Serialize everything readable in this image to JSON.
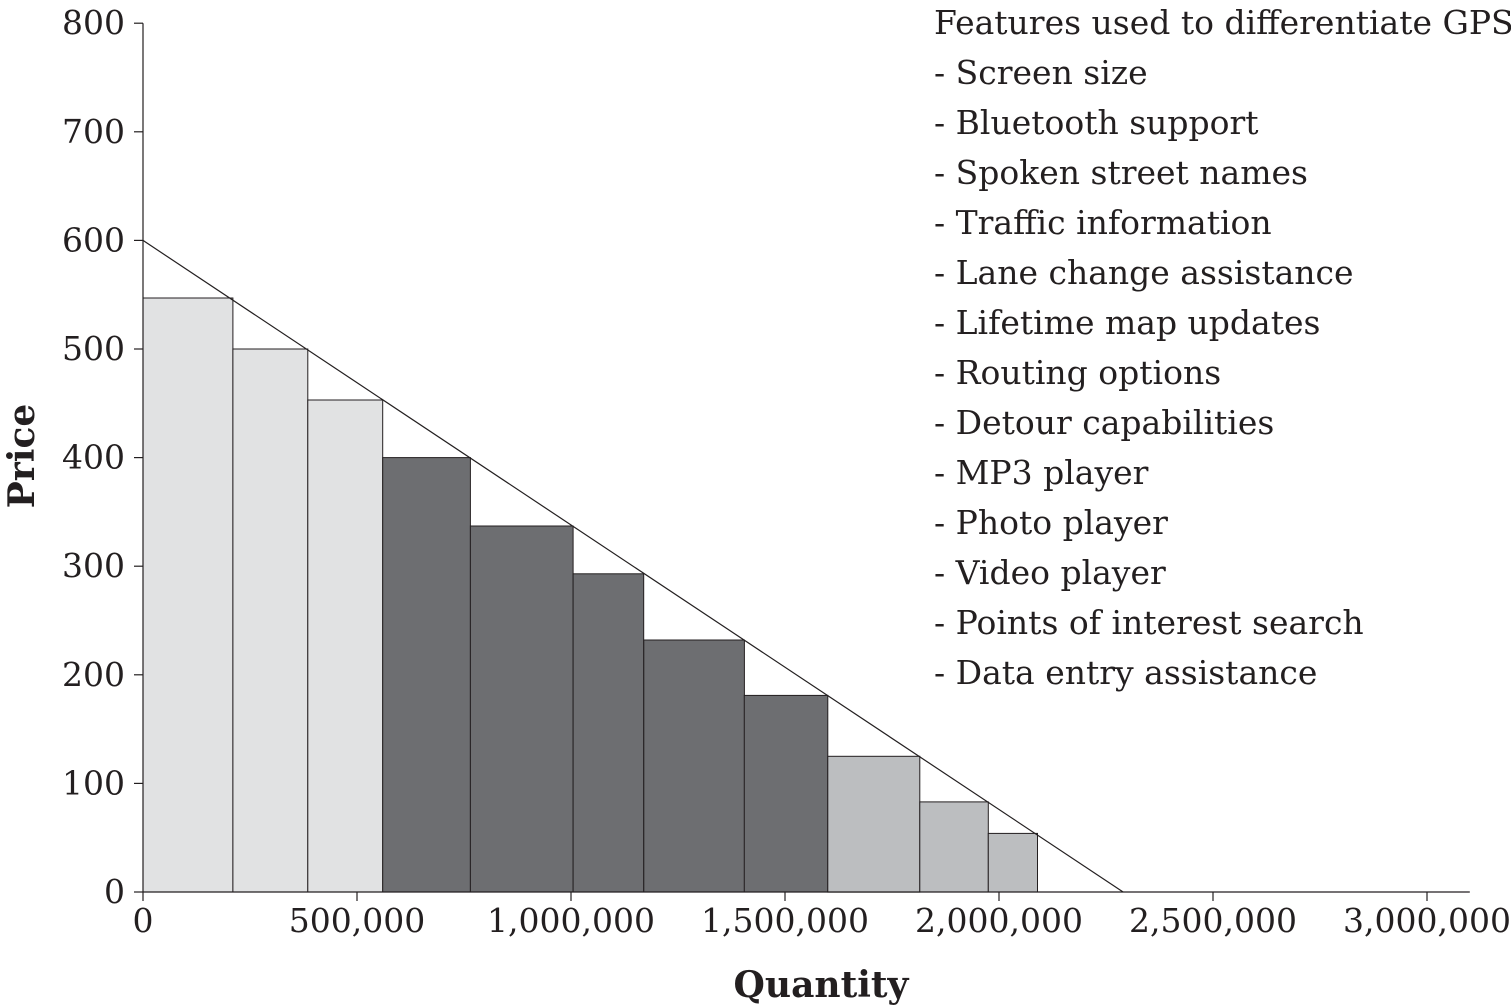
{
  "chart_data": {
    "type": "bar",
    "xlabel": "Quantity",
    "ylabel": "Price",
    "xlim": [
      0,
      3100000
    ],
    "ylim": [
      0,
      800
    ],
    "x_ticks": [
      0,
      500000,
      1000000,
      1500000,
      2000000,
      2500000,
      3000000
    ],
    "x_tick_labels": [
      "0",
      "500,000",
      "1,000,000",
      "1,500,000",
      "2,000,000",
      "2,500,000",
      "3,000,000"
    ],
    "y_ticks": [
      0,
      100,
      200,
      300,
      400,
      500,
      600,
      700,
      800
    ],
    "y_tick_labels": [
      "0",
      "100",
      "200",
      "300",
      "400",
      "500",
      "600",
      "700",
      "800"
    ],
    "grid": false,
    "colors": {
      "group_light": "#e1e2e3",
      "group_dark": "#6d6e71",
      "group_mid": "#bcbec0",
      "outline": "#231f20"
    },
    "bars": [
      {
        "x0": 0,
        "x1": 210000,
        "price": 547,
        "group": "group_light"
      },
      {
        "x0": 210000,
        "x1": 385000,
        "price": 500,
        "group": "group_light"
      },
      {
        "x0": 385000,
        "x1": 560000,
        "price": 453,
        "group": "group_light"
      },
      {
        "x0": 560000,
        "x1": 765000,
        "price": 400,
        "group": "group_dark"
      },
      {
        "x0": 765000,
        "x1": 1005000,
        "price": 337,
        "group": "group_dark"
      },
      {
        "x0": 1005000,
        "x1": 1170000,
        "price": 293,
        "group": "group_dark"
      },
      {
        "x0": 1170000,
        "x1": 1405000,
        "price": 232,
        "group": "group_dark"
      },
      {
        "x0": 1405000,
        "x1": 1600000,
        "price": 181,
        "group": "group_dark"
      },
      {
        "x0": 1600000,
        "x1": 1815000,
        "price": 125,
        "group": "group_mid"
      },
      {
        "x0": 1815000,
        "x1": 1975000,
        "price": 83,
        "group": "group_mid"
      },
      {
        "x0": 1975000,
        "x1": 2090000,
        "price": 54,
        "group": "group_mid"
      }
    ],
    "demand_line": {
      "x": [
        0,
        2290000
      ],
      "y": [
        600,
        0
      ]
    },
    "annotation": {
      "title": "Features used to differentiate GPS",
      "items": [
        "- Screen size",
        "- Bluetooth support",
        "- Spoken street names",
        "- Traffic information",
        "- Lane change assistance",
        "- Lifetime map updates",
        "- Routing options",
        "- Detour capabilities",
        "- MP3 player",
        "- Photo player",
        "- Video player",
        "- Points of interest search",
        "- Data entry assistance"
      ]
    }
  }
}
